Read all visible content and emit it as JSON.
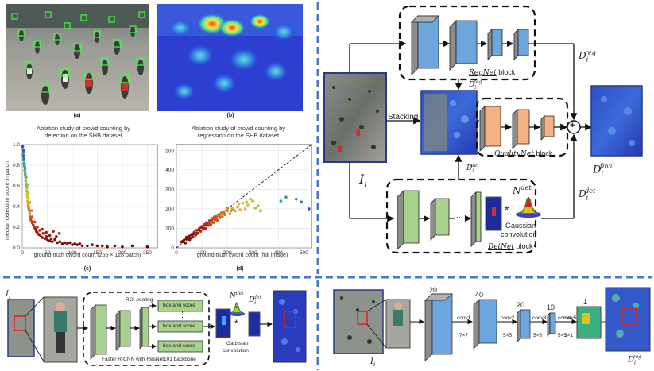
{
  "panels": {
    "a_caption": "(a)",
    "b_caption": "(b)",
    "c_caption": "(c)",
    "d_caption": "(d)"
  },
  "chart_data": [
    {
      "type": "scatter",
      "title": "Ablation study of crowd counting by detection on the SHB dataset",
      "title_line1": "Ablation study of crowd counting by",
      "title_line2": "detection on the SHB dataset",
      "xlabel": "ground-truth cword count (256 × 128 patch)",
      "ylabel": "median detection score in patch",
      "xlim": [
        0,
        270
      ],
      "ylim": [
        0,
        1.0
      ],
      "xticks": [
        "0",
        "50",
        "100",
        "150",
        "200",
        "250"
      ],
      "yticks": [
        "0.0",
        "0.2",
        "0.4",
        "0.6",
        "0.8",
        "1.0"
      ],
      "grid": true,
      "points": [
        [
          1,
          0.98
        ],
        [
          2,
          0.95
        ],
        [
          2,
          0.9
        ],
        [
          3,
          0.88
        ],
        [
          3,
          0.85
        ],
        [
          4,
          0.82
        ],
        [
          4,
          0.8
        ],
        [
          5,
          0.78
        ],
        [
          5,
          0.75
        ],
        [
          6,
          0.72
        ],
        [
          6,
          0.7
        ],
        [
          7,
          0.68
        ],
        [
          7,
          0.65
        ],
        [
          8,
          0.62
        ],
        [
          8,
          0.6
        ],
        [
          9,
          0.58
        ],
        [
          9,
          0.55
        ],
        [
          10,
          0.52
        ],
        [
          10,
          0.5
        ],
        [
          11,
          0.48
        ],
        [
          11,
          0.45
        ],
        [
          12,
          0.42
        ],
        [
          12,
          0.4
        ],
        [
          13,
          0.38
        ],
        [
          14,
          0.36
        ],
        [
          15,
          0.33
        ],
        [
          16,
          0.3
        ],
        [
          17,
          0.28
        ],
        [
          18,
          0.26
        ],
        [
          20,
          0.24
        ],
        [
          22,
          0.22
        ],
        [
          24,
          0.2
        ],
        [
          26,
          0.18
        ],
        [
          28,
          0.16
        ],
        [
          30,
          0.15
        ],
        [
          33,
          0.13
        ],
        [
          36,
          0.12
        ],
        [
          40,
          0.1
        ],
        [
          45,
          0.09
        ],
        [
          50,
          0.08
        ],
        [
          55,
          0.07
        ],
        [
          60,
          0.06
        ],
        [
          70,
          0.05
        ],
        [
          80,
          0.04
        ],
        [
          90,
          0.04
        ],
        [
          100,
          0.03
        ],
        [
          110,
          0.03
        ],
        [
          120,
          0.02
        ],
        [
          130,
          0.02
        ],
        [
          150,
          0.02
        ],
        [
          170,
          0.01
        ],
        [
          200,
          0.01
        ],
        [
          250,
          0.01
        ],
        [
          3,
          0.93
        ],
        [
          4,
          0.86
        ],
        [
          6,
          0.77
        ],
        [
          8,
          0.69
        ],
        [
          10,
          0.61
        ],
        [
          12,
          0.53
        ],
        [
          15,
          0.44
        ],
        [
          18,
          0.36
        ],
        [
          20,
          0.3
        ],
        [
          25,
          0.25
        ],
        [
          30,
          0.2
        ],
        [
          35,
          0.17
        ],
        [
          42,
          0.14
        ],
        [
          48,
          0.11
        ],
        [
          58,
          0.09
        ],
        [
          65,
          0.08
        ],
        [
          75,
          0.06
        ],
        [
          85,
          0.05
        ],
        [
          95,
          0.05
        ],
        [
          105,
          0.04
        ],
        [
          115,
          0.04
        ],
        [
          140,
          0.03
        ],
        [
          160,
          0.02
        ],
        [
          185,
          0.02
        ],
        [
          220,
          0.02
        ],
        [
          62,
          0.16
        ],
        [
          74,
          0.14
        ],
        [
          55,
          0.12
        ],
        [
          68,
          0.11
        ],
        [
          48,
          0.15
        ],
        [
          40,
          0.18
        ]
      ]
    },
    {
      "type": "scatter",
      "title": "Ablation study of crowd counting by regression on the SHB dataset",
      "title_line1": "Ablation study of crowd counting by",
      "title_line2": "regression on the SHB dataset",
      "xlabel": "ground-truth cword count (full image)",
      "ylabel": "",
      "xlim": [
        0,
        530
      ],
      "ylim": [
        0,
        530
      ],
      "xticks": [
        "0",
        "100",
        "200",
        "300",
        "400",
        "500"
      ],
      "yticks": [
        "0",
        "100",
        "200",
        "300",
        "400",
        "500"
      ],
      "grid": true,
      "diagonal": true,
      "points": [
        [
          20,
          30
        ],
        [
          30,
          40
        ],
        [
          35,
          25
        ],
        [
          40,
          55
        ],
        [
          45,
          45
        ],
        [
          50,
          60
        ],
        [
          55,
          50
        ],
        [
          60,
          70
        ],
        [
          65,
          55
        ],
        [
          70,
          80
        ],
        [
          75,
          65
        ],
        [
          80,
          90
        ],
        [
          85,
          75
        ],
        [
          90,
          100
        ],
        [
          95,
          85
        ],
        [
          100,
          110
        ],
        [
          105,
          95
        ],
        [
          110,
          120
        ],
        [
          115,
          100
        ],
        [
          120,
          125
        ],
        [
          125,
          115
        ],
        [
          130,
          140
        ],
        [
          135,
          120
        ],
        [
          140,
          150
        ],
        [
          145,
          130
        ],
        [
          150,
          145
        ],
        [
          155,
          160
        ],
        [
          160,
          140
        ],
        [
          165,
          170
        ],
        [
          170,
          155
        ],
        [
          175,
          175
        ],
        [
          180,
          160
        ],
        [
          185,
          185
        ],
        [
          190,
          170
        ],
        [
          200,
          190
        ],
        [
          210,
          175
        ],
        [
          220,
          200
        ],
        [
          230,
          190
        ],
        [
          240,
          210
        ],
        [
          250,
          195
        ],
        [
          260,
          230
        ],
        [
          270,
          200
        ],
        [
          280,
          220
        ],
        [
          300,
          240
        ],
        [
          320,
          215
        ],
        [
          330,
          190
        ],
        [
          410,
          240
        ],
        [
          430,
          260
        ],
        [
          470,
          250
        ],
        [
          490,
          235
        ],
        [
          520,
          200
        ],
        [
          25,
          35
        ],
        [
          38,
          48
        ],
        [
          52,
          42
        ],
        [
          58,
          66
        ],
        [
          68,
          74
        ],
        [
          78,
          72
        ],
        [
          88,
          92
        ],
        [
          98,
          105
        ],
        [
          108,
          102
        ],
        [
          118,
          130
        ],
        [
          128,
          122
        ],
        [
          138,
          135
        ],
        [
          148,
          158
        ],
        [
          158,
          150
        ],
        [
          168,
          165
        ],
        [
          178,
          182
        ],
        [
          188,
          175
        ],
        [
          198,
          205
        ],
        [
          215,
          190
        ],
        [
          245,
          225
        ],
        [
          275,
          235
        ],
        [
          290,
          250
        ],
        [
          310,
          205
        ]
      ]
    }
  ],
  "right": {
    "input_label": "I",
    "input_sub": "i",
    "stacking": "Stacking",
    "regnet_label": "RegNet",
    "regnet_suffix": " block",
    "qualitynet_label": "QualityNet",
    "qualitynet_suffix": " block",
    "detnet_label": "DetNet",
    "detnet_suffix": " block",
    "d_reg": "D",
    "d_reg_sub": "i",
    "d_reg_sup": "reg",
    "d_det": "D",
    "d_det_sub": "i",
    "d_det_sup": "det",
    "d_final_sup": "final",
    "n_det": "N",
    "n_det_sup": "det",
    "star": "*",
    "gaussian": "Gaussian",
    "convolution": "convolution",
    "ellipsis": "···",
    "plus": "+"
  },
  "bottom_left": {
    "roi_pooling": "ROI pooling",
    "box_score": "box and score",
    "dots": "⋮",
    "backbone": "Faster R-CNN with ResNet101 backbone",
    "gaussian": "Gaussian",
    "convolution": "convolution",
    "i_label": "I",
    "i_sub": "i",
    "n_det": "N",
    "n_det_sup": "det",
    "d_det": "D",
    "d_det_sub": "i",
    "d_det_sup": "det",
    "star": "*"
  },
  "bottom_right": {
    "channels": [
      "20",
      "40",
      "20",
      "10",
      "1"
    ],
    "convs": [
      "conv1",
      "conv2",
      "conv3",
      "conv4",
      "conv5"
    ],
    "kernels": [
      "7×7",
      "5×5",
      "5×5",
      "5×5",
      "1×1"
    ],
    "i_label": "I",
    "i_sub": "i",
    "d_reg": "D",
    "d_reg_sub": "i",
    "d_reg_sup": "reg"
  },
  "colors": {
    "divider": "#4a78c0",
    "regnet_blue": "#6ca6dc",
    "quality_orange": "#f4b183",
    "detnet_green": "#a9d18e",
    "block_gray": "#8c8c8c"
  }
}
